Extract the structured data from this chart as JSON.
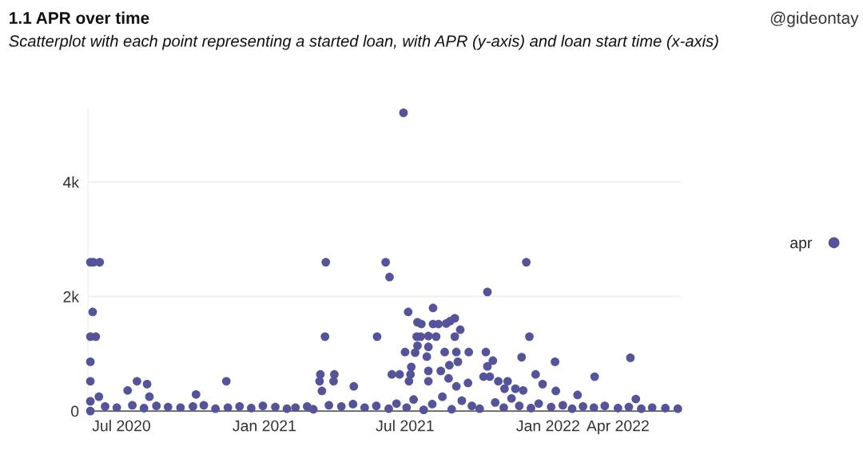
{
  "chart_data": {
    "type": "scatter",
    "title": "1.1 APR over time",
    "subtitle": "Scatterplot with each point representing a started loan, with APR (y-axis) and loan start time (x-axis)",
    "annotations": [
      "@gideontay"
    ],
    "xlim": [
      "2020-05-19",
      "2022-06-21"
    ],
    "ylim": [
      0,
      5300
    ],
    "xticks": [
      {
        "value": "2020-07-01",
        "label": "Jul 2020"
      },
      {
        "value": "2021-01-01",
        "label": "Jan 2021"
      },
      {
        "value": "2021-07-01",
        "label": "Jul 2021"
      },
      {
        "value": "2022-01-01",
        "label": "Jan 2022"
      },
      {
        "value": "2022-04-01",
        "label": "Apr 2022"
      }
    ],
    "yticks": [
      0,
      {
        "value": 2000,
        "label": "2k"
      },
      {
        "value": 4000,
        "label": "4k"
      }
    ],
    "grid": "y",
    "legend": "right",
    "marker": "circle",
    "series": [
      {
        "name": "apr",
        "color": "#55539a",
        "x": [
          "2020-05-22",
          "2020-05-26",
          "2020-06-03",
          "2020-05-25",
          "2020-05-22",
          "2020-05-29",
          "2020-05-22",
          "2020-05-22",
          "2020-05-22",
          "2020-05-22",
          "2020-06-02",
          "2020-07-09",
          "2020-07-21",
          "2020-08-03",
          "2020-08-06",
          "2020-10-05",
          "2020-11-13",
          "2021-03-21",
          "2021-03-20",
          "2021-03-14",
          "2021-04-01",
          "2021-03-13",
          "2021-03-31",
          "2021-04-26",
          "2021-03-16",
          "2021-06-29",
          "2021-06-06",
          "2021-06-11",
          "2021-12-04",
          "2021-10-15",
          "2021-07-05",
          "2021-08-06",
          "2021-05-26",
          "2021-12-08",
          "2021-09-03",
          "2021-07-17",
          "2021-07-22",
          "2021-08-06",
          "2021-08-13",
          "2021-08-23",
          "2021-08-28",
          "2021-09-10",
          "2021-07-16",
          "2021-07-21",
          "2021-07-31",
          "2021-08-10",
          "2021-09-03",
          "2021-07-17",
          "2021-07-31",
          "2021-07-01",
          "2021-07-14",
          "2021-08-21",
          "2021-09-05",
          "2021-09-21",
          "2021-10-13",
          "2021-07-29",
          "2021-11-28",
          "2021-09-07",
          "2021-10-22",
          "2022-01-10",
          "2022-04-17",
          "2021-07-09",
          "2021-08-27",
          "2021-10-15",
          "2021-06-14",
          "2021-06-24",
          "2021-07-08",
          "2021-07-31",
          "2021-08-16",
          "2021-10-10",
          "2021-10-18",
          "2022-03-02",
          "2021-12-16",
          "2021-07-06",
          "2021-07-31",
          "2021-08-26",
          "2021-10-29",
          "2021-11-10",
          "2021-12-25",
          "2021-09-05",
          "2021-09-20",
          "2021-11-06",
          "2021-11-20",
          "2021-11-30",
          "2022-01-11",
          "2022-02-08",
          "2022-04-24",
          "2020-06-10",
          "2020-06-25",
          "2020-07-15",
          "2020-07-30",
          "2020-08-15",
          "2020-08-30",
          "2020-09-15",
          "2020-10-01",
          "2020-10-15",
          "2020-10-30",
          "2020-11-15",
          "2020-11-30",
          "2020-12-15",
          "2020-12-30",
          "2021-01-15",
          "2021-01-30",
          "2021-02-10",
          "2021-02-25",
          "2021-03-05",
          "2021-03-25",
          "2021-04-10",
          "2021-04-25",
          "2021-05-10",
          "2021-05-25",
          "2021-06-10",
          "2021-06-20",
          "2021-07-03",
          "2021-07-12",
          "2021-07-25",
          "2021-08-05",
          "2021-08-18",
          "2021-08-30",
          "2021-09-12",
          "2021-09-25",
          "2021-10-05",
          "2021-10-25",
          "2021-11-05",
          "2021-11-15",
          "2021-11-25",
          "2021-12-10",
          "2021-12-20",
          "2022-01-05",
          "2022-01-20",
          "2022-02-01",
          "2022-02-15",
          "2022-03-01",
          "2022-03-15",
          "2022-04-01",
          "2022-04-15",
          "2022-05-01",
          "2022-05-15",
          "2022-06-01",
          "2022-06-17"
        ],
        "values": [
          2600,
          2600,
          2600,
          1730,
          1300,
          1300,
          860,
          520,
          170,
          0,
          250,
          360,
          520,
          470,
          250,
          290,
          520,
          2600,
          1300,
          640,
          640,
          520,
          520,
          430,
          350,
          5210,
          2600,
          2340,
          2600,
          2080,
          1730,
          1800,
          1300,
          1300,
          1620,
          1550,
          1520,
          1520,
          1520,
          1530,
          1570,
          1420,
          1300,
          1300,
          1310,
          1300,
          1300,
          1140,
          1120,
          1030,
          1020,
          1030,
          1030,
          1030,
          1030,
          950,
          940,
          860,
          880,
          860,
          930,
          770,
          800,
          780,
          640,
          640,
          640,
          700,
          700,
          600,
          600,
          600,
          640,
          520,
          520,
          570,
          520,
          520,
          470,
          430,
          490,
          390,
          390,
          360,
          350,
          280,
          210,
          80,
          60,
          100,
          50,
          90,
          70,
          60,
          80,
          100,
          40,
          60,
          80,
          50,
          90,
          70,
          40,
          60,
          80,
          30,
          100,
          80,
          120,
          60,
          90,
          40,
          130,
          60,
          200,
          20,
          120,
          250,
          30,
          180,
          90,
          40,
          150,
          60,
          220,
          90,
          50,
          130,
          70,
          100,
          40,
          80,
          60,
          90,
          50,
          70,
          40,
          60,
          50,
          40
        ]
      }
    ]
  }
}
